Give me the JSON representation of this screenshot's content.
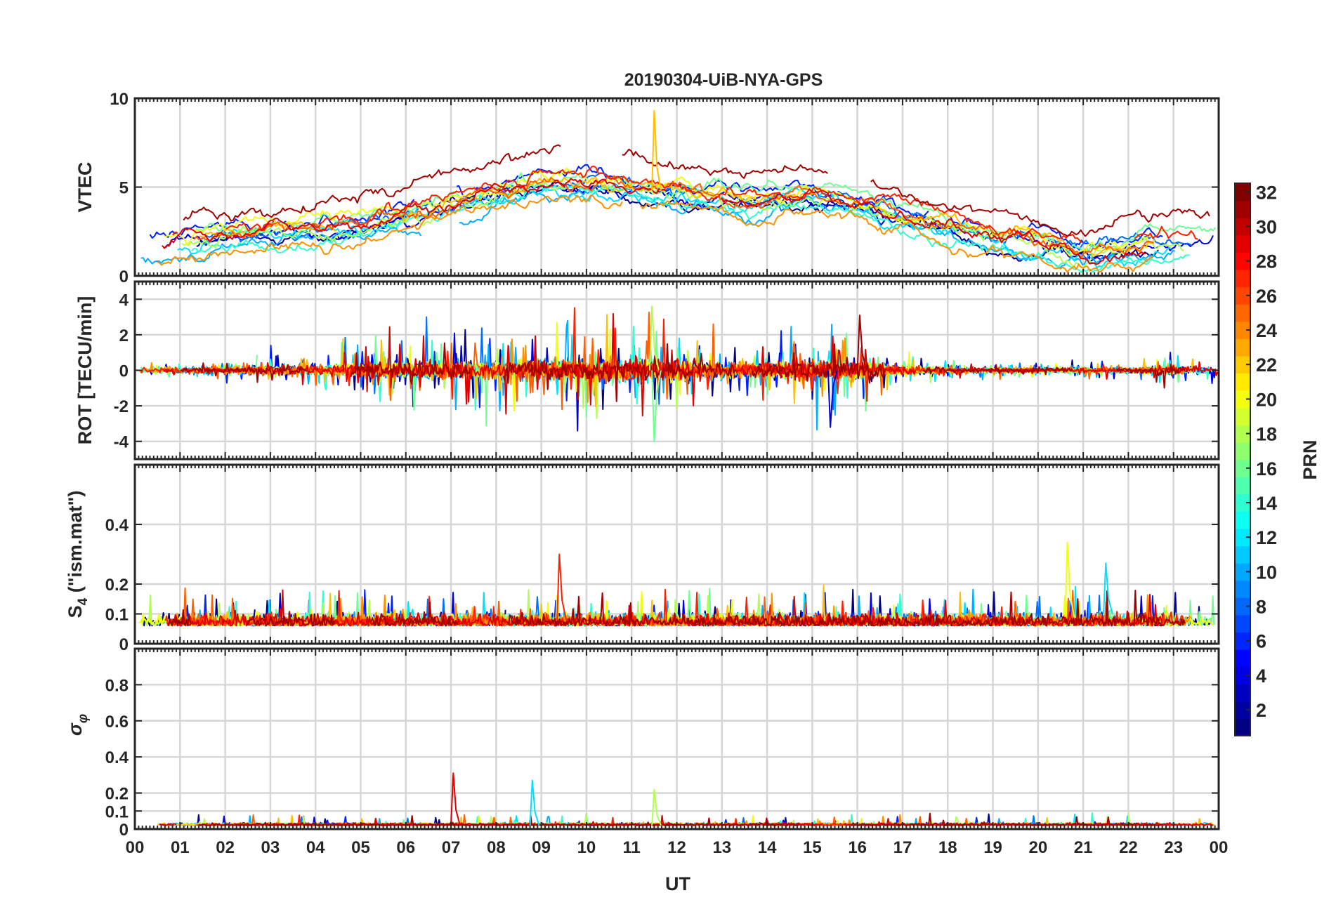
{
  "chart_data": {
    "type": "line",
    "title": "20190304-UiB-NYA-GPS",
    "xlabel": "UT",
    "x_ticks": [
      "00",
      "01",
      "02",
      "03",
      "04",
      "05",
      "06",
      "07",
      "08",
      "09",
      "10",
      "11",
      "12",
      "13",
      "14",
      "15",
      "16",
      "17",
      "18",
      "19",
      "20",
      "21",
      "22",
      "23",
      "00"
    ],
    "xlim": [
      0,
      24
    ],
    "panels": [
      {
        "name": "vtec",
        "ylabel": "VTEC",
        "ylim": [
          0,
          10
        ],
        "y_ticks": [
          0,
          5,
          10
        ],
        "y_tick_labels": [
          "0",
          "5",
          "10"
        ],
        "series_summary": {
          "baseline": [
            [
              0,
              2.0
            ],
            [
              2,
              2.5
            ],
            [
              3,
              2.8
            ],
            [
              4,
              3.0
            ],
            [
              5,
              3.2
            ],
            [
              6,
              3.8
            ],
            [
              7,
              4.4
            ],
            [
              8,
              5.0
            ],
            [
              9,
              5.6
            ],
            [
              10,
              5.5
            ],
            [
              11,
              5.3
            ],
            [
              12,
              5.0
            ],
            [
              13,
              4.6
            ],
            [
              14,
              4.6
            ],
            [
              15,
              4.9
            ],
            [
              16,
              4.4
            ],
            [
              17,
              3.6
            ],
            [
              18,
              3.1
            ],
            [
              19,
              2.6
            ],
            [
              20,
              2.2
            ],
            [
              21,
              1.6
            ],
            [
              22,
              1.9
            ],
            [
              23,
              2.3
            ],
            [
              24,
              2.2
            ]
          ],
          "spread": 1.2,
          "noise": 0.35,
          "peak": 9.3,
          "peak_at": 11.5
        }
      },
      {
        "name": "rot",
        "ylabel": "ROT [TECU/min]",
        "ylim": [
          -5,
          5
        ],
        "y_ticks": [
          -4,
          -2,
          0,
          2,
          4
        ],
        "y_tick_labels": [
          "-4",
          "-2",
          "0",
          "2",
          "4"
        ],
        "series_summary": {
          "activity": [
            [
              0,
              0.25
            ],
            [
              2,
              0.3
            ],
            [
              3,
              0.6
            ],
            [
              4,
              0.6
            ],
            [
              5,
              0.9
            ],
            [
              6,
              1.2
            ],
            [
              7,
              1.1
            ],
            [
              8,
              1.3
            ],
            [
              9,
              1.5
            ],
            [
              10,
              1.4
            ],
            [
              11,
              1.7
            ],
            [
              12,
              1.4
            ],
            [
              13,
              1.0
            ],
            [
              14,
              0.9
            ],
            [
              15,
              1.4
            ],
            [
              16,
              1.3
            ],
            [
              17,
              0.45
            ],
            [
              18,
              0.3
            ],
            [
              19,
              0.2
            ],
            [
              20,
              0.2
            ],
            [
              21,
              0.25
            ],
            [
              22,
              0.2
            ],
            [
              23,
              0.6
            ],
            [
              24,
              0.3
            ]
          ],
          "max_spike": 3.6,
          "min_spike": -4.0
        }
      },
      {
        "name": "s4",
        "ylabel": "S4 (\"ism.mat\")",
        "ylim": [
          0,
          0.6
        ],
        "y_ticks": [
          0,
          0.1,
          0.2,
          0.4
        ],
        "y_tick_labels": [
          "0",
          "0.1",
          "0.2",
          "0.4"
        ],
        "series_summary": {
          "baseline": 0.06,
          "max": 0.34,
          "max_at": 20.65
        }
      },
      {
        "name": "sigma_phi",
        "ylabel": "σ φ",
        "ylim": [
          0,
          1.0
        ],
        "y_ticks": [
          0,
          0.1,
          0.2,
          0.4,
          0.6,
          0.8
        ],
        "y_tick_labels": [
          "0",
          "0.1",
          "0.2",
          "0.4",
          "0.6",
          "0.8"
        ],
        "series_summary": {
          "baseline": 0.02,
          "max": 0.31,
          "max_at": 7.05
        }
      }
    ],
    "colorbar": {
      "label": "PRN",
      "min": 1,
      "max": 32,
      "ticks": [
        2,
        4,
        6,
        8,
        10,
        12,
        14,
        16,
        18,
        20,
        22,
        24,
        26,
        28,
        30,
        32
      ],
      "tick_labels": [
        "2",
        "4",
        "6",
        "8",
        "10",
        "12",
        "14",
        "16",
        "18",
        "20",
        "22",
        "24",
        "26",
        "28",
        "30",
        "32"
      ],
      "colormap": "jet"
    },
    "series": [
      {
        "prn": 1,
        "color": "#00008f"
      },
      {
        "prn": 3,
        "color": "#0000df"
      },
      {
        "prn": 5,
        "color": "#0020ff"
      },
      {
        "prn": 7,
        "color": "#0070ff"
      },
      {
        "prn": 9,
        "color": "#00b0ff"
      },
      {
        "prn": 11,
        "color": "#00e0ff"
      },
      {
        "prn": 13,
        "color": "#30ffd0"
      },
      {
        "prn": 15,
        "color": "#70ff90"
      },
      {
        "prn": 17,
        "color": "#b0ff50"
      },
      {
        "prn": 19,
        "color": "#f0ff10"
      },
      {
        "prn": 21,
        "color": "#ffc000"
      },
      {
        "prn": 23,
        "color": "#ff9000"
      },
      {
        "prn": 25,
        "color": "#ff6000"
      },
      {
        "prn": 27,
        "color": "#ff2000"
      },
      {
        "prn": 29,
        "color": "#e00000"
      },
      {
        "prn": 31,
        "color": "#a00000"
      }
    ],
    "grid": true
  }
}
